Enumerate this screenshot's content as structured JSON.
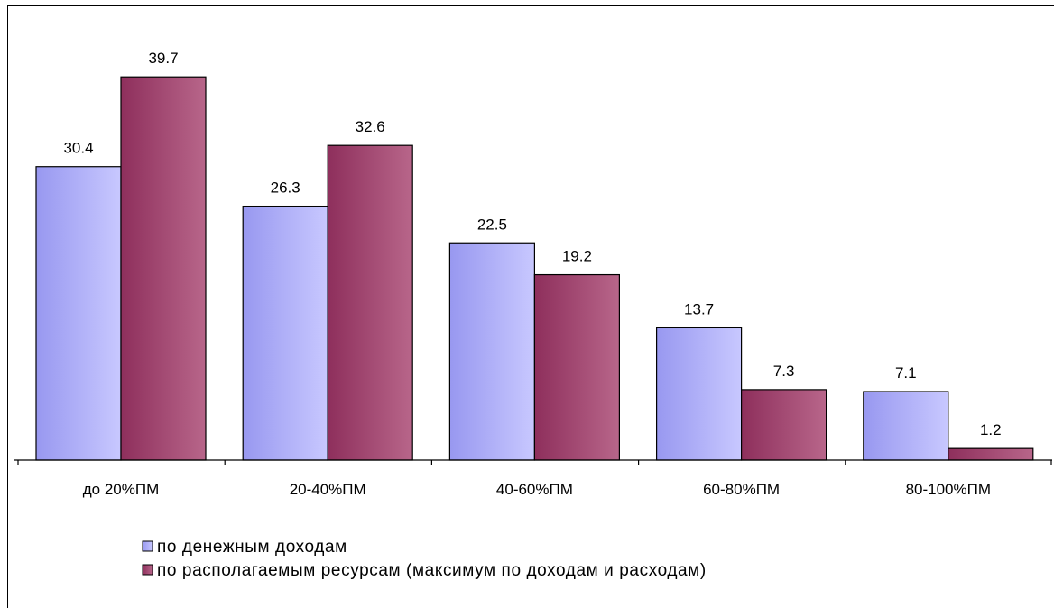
{
  "chart_data": {
    "type": "bar",
    "categories": [
      "до 20%ПМ",
      "20-40%ПМ",
      "40-60%ПМ",
      "60-80%ПМ",
      "80-100%ПМ"
    ],
    "series": [
      {
        "name": "по денежным доходам",
        "values": [
          30.4,
          26.3,
          22.5,
          13.7,
          7.1
        ]
      },
      {
        "name": "по располагаемым ресурсам (максимум по доходам и расходам)",
        "values": [
          39.7,
          32.6,
          19.2,
          7.3,
          1.2
        ]
      }
    ],
    "ylim": [
      0,
      45
    ],
    "data_labels": true,
    "grid": false,
    "legend_position": "bottom-left"
  },
  "colors": {
    "series_0_light": "#c8c8ff",
    "series_0_dark": "#9898f0",
    "series_1_light": "#b8668a",
    "series_1_dark": "#8e2f5c"
  }
}
